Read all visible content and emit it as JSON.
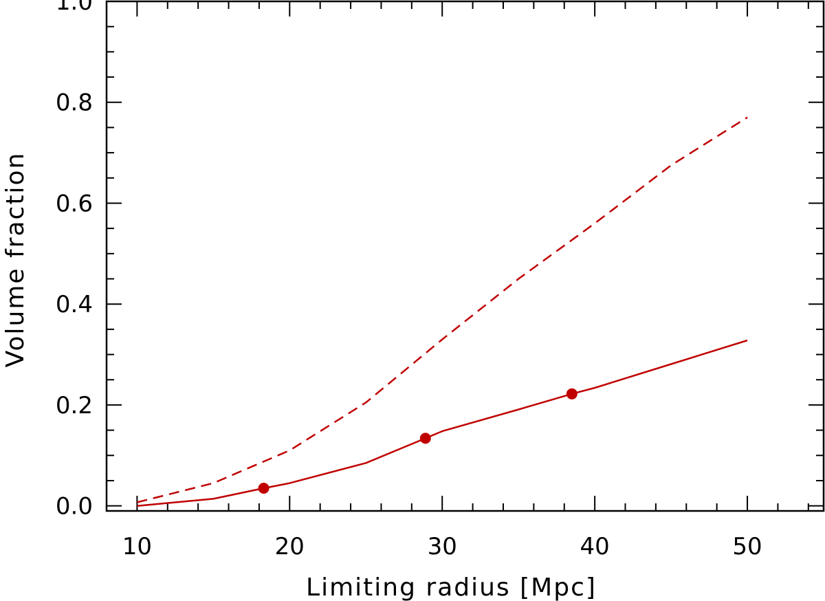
{
  "chart_data": {
    "type": "line",
    "title": "",
    "xlabel": "Limiting radius [Mpc]",
    "ylabel": "Volume fraction",
    "xlim": [
      8,
      55
    ],
    "ylim": [
      -0.01,
      1.0
    ],
    "xticks": [
      10,
      20,
      30,
      40,
      50
    ],
    "yticks": [
      0.0,
      0.2,
      0.4,
      0.6,
      0.8,
      1.0
    ],
    "ytick_labels": [
      "0.0",
      "0.2",
      "0.4",
      "0.6",
      "0.8",
      "1.0"
    ],
    "grid": false,
    "color": "#c00000",
    "series": [
      {
        "style": "solid",
        "x": [
          10,
          15,
          18.3,
          20,
          25,
          28.9,
          30,
          35,
          38.5,
          40,
          45,
          50
        ],
        "y": [
          0.0,
          0.014,
          0.035,
          0.045,
          0.085,
          0.134,
          0.148,
          0.191,
          0.222,
          0.234,
          0.281,
          0.328
        ]
      },
      {
        "style": "dashed",
        "x": [
          10,
          15,
          20,
          25,
          30,
          35,
          40,
          45,
          50
        ],
        "y": [
          0.007,
          0.045,
          0.11,
          0.205,
          0.33,
          0.45,
          0.56,
          0.675,
          0.77
        ]
      },
      {
        "style": "markers",
        "x": [
          18.3,
          28.9,
          38.5
        ],
        "y": [
          0.035,
          0.134,
          0.222
        ]
      }
    ]
  }
}
